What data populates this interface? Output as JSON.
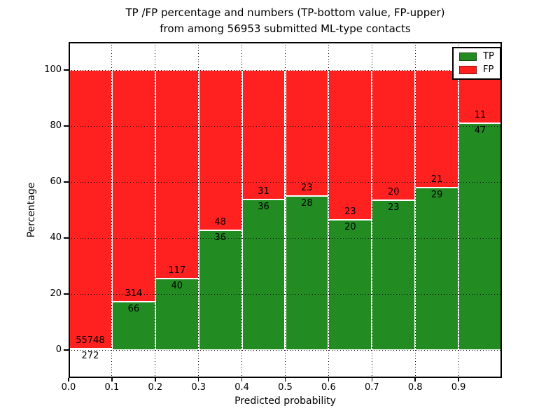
{
  "figure": {
    "title_line1": "TP /FP percentage and numbers (TP-bottom value, FP-upper)",
    "title_line2": "from among 56953 submitted ML-type contacts"
  },
  "chart_data": {
    "type": "bar",
    "stacked": true,
    "title": "TP /FP percentage and numbers (TP-bottom value, FP-upper) from among 56953 submitted ML-type contacts",
    "xlabel": "Predicted probability",
    "ylabel": "Percentage",
    "total_contacts": 56953,
    "bin_edges": [
      0.0,
      0.1,
      0.2,
      0.3,
      0.4,
      0.5,
      0.6,
      0.7,
      0.8,
      0.9,
      1.0
    ],
    "xtick_labels": [
      "0.0",
      "0.1",
      "0.2",
      "0.3",
      "0.4",
      "0.5",
      "0.6",
      "0.7",
      "0.8",
      "0.9"
    ],
    "ytick_values": [
      0,
      20,
      40,
      60,
      80,
      100
    ],
    "xlim": [
      0.0,
      1.0
    ],
    "ylim": [
      -10,
      110
    ],
    "grid": true,
    "grid_style": "dotted-black-over-bars",
    "bar_edge_color": "#ffffff",
    "series": [
      {
        "name": "TP",
        "color": "#228b22",
        "counts": [
          272,
          66,
          40,
          36,
          36,
          28,
          20,
          23,
          29,
          47
        ]
      },
      {
        "name": "FP",
        "color": "#ff2020",
        "counts": [
          55748,
          314,
          117,
          48,
          31,
          23,
          23,
          20,
          21,
          11
        ]
      }
    ],
    "tp_percent_of_bin": [
      0.49,
      17.37,
      25.48,
      42.86,
      53.73,
      54.9,
      46.51,
      53.49,
      58.0,
      81.03
    ],
    "legend": {
      "position": "upper right",
      "entries": [
        {
          "label": "TP",
          "color": "#228b22"
        },
        {
          "label": "FP",
          "color": "#ff2020"
        }
      ]
    }
  }
}
